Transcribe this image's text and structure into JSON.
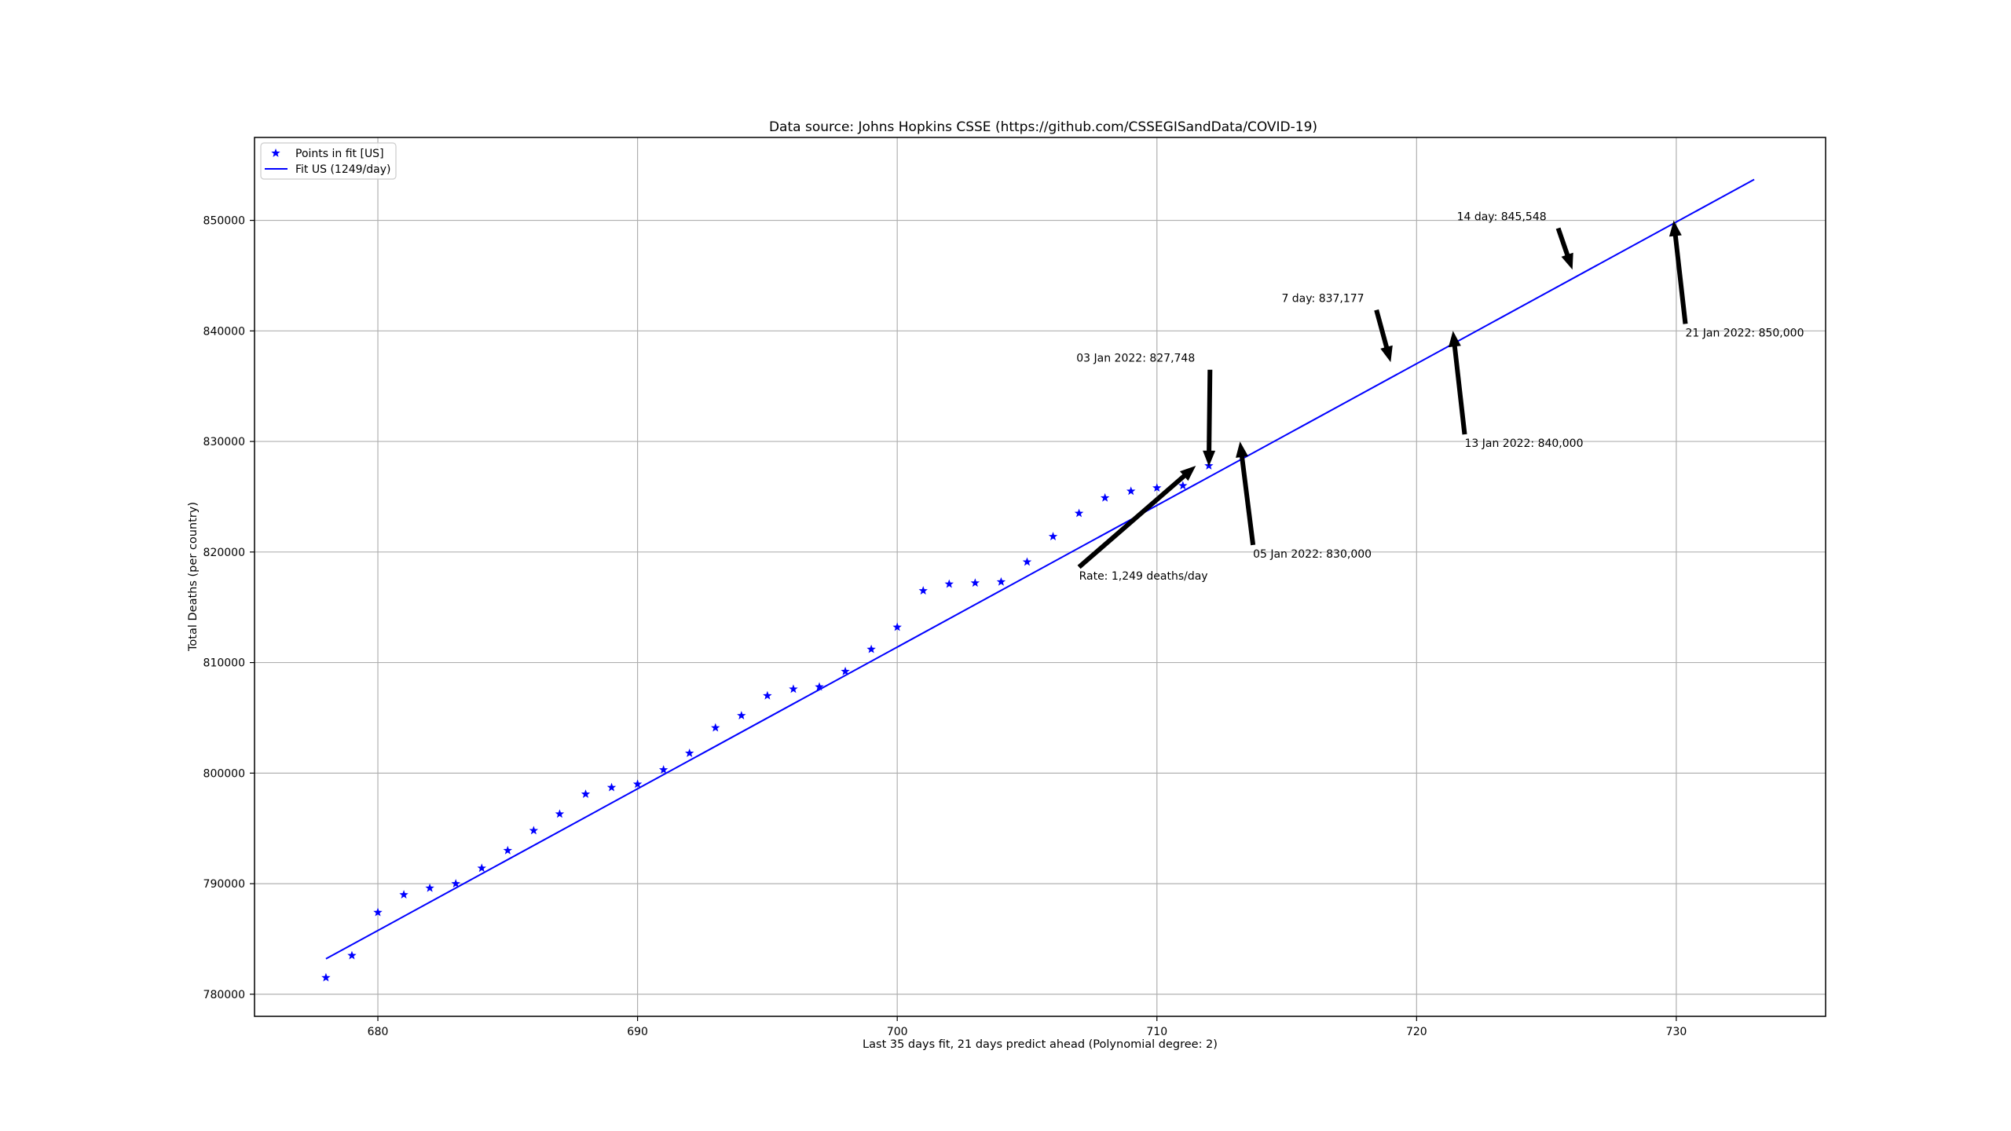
{
  "chart_data": {
    "type": "scatter",
    "title": "Data source: Johns Hopkins CSSE (https://github.com/CSSEGISandData/COVID-19)",
    "xlabel": "Last 35 days fit, 21 days predict ahead (Polynomial degree: 2)",
    "ylabel": "Total Deaths (per country)",
    "xlim": [
      675.25,
      735.75
    ],
    "ylim": [
      778000,
      857500
    ],
    "x_ticks": [
      680,
      690,
      700,
      710,
      720,
      730
    ],
    "y_ticks": [
      780000,
      790000,
      800000,
      810000,
      820000,
      830000,
      840000,
      850000
    ],
    "grid": true,
    "legend_position": "upper left",
    "series": [
      {
        "name": "Points in fit [US]",
        "kind": "scatter",
        "marker": "star",
        "color": "#0000ff",
        "x": [
          678,
          679,
          680,
          681,
          682,
          683,
          684,
          685,
          686,
          687,
          688,
          689,
          690,
          691,
          692,
          693,
          694,
          695,
          696,
          697,
          698,
          699,
          700,
          701,
          702,
          703,
          704,
          705,
          706,
          707,
          708,
          709,
          710,
          711,
          712
        ],
        "y": [
          781500,
          783500,
          787400,
          789000,
          789600,
          790000,
          791400,
          793000,
          794800,
          796300,
          798100,
          798700,
          799000,
          800300,
          801800,
          804100,
          805200,
          807000,
          807600,
          807800,
          809200,
          811200,
          813200,
          816500,
          817100,
          817200,
          817300,
          819100,
          821400,
          823500,
          824900,
          825500,
          825800,
          826000,
          827800
        ]
      },
      {
        "name": "Fit US (1249/day)",
        "kind": "line",
        "color": "#0000ff",
        "x": [
          678,
          733
        ],
        "y": [
          783200,
          853700
        ]
      }
    ],
    "annotations": [
      {
        "text": "03 Jan 2022: 827,748",
        "x": 712,
        "y": 827748,
        "text_x": 706.9,
        "text_y": 837200,
        "align": "start"
      },
      {
        "text": "05 Jan 2022: 830,000",
        "x": 713.2,
        "y": 830000,
        "text_x": 713.7,
        "text_y": 819500,
        "align": "start"
      },
      {
        "text": "Rate: 1,249 deaths/day",
        "x": 711.5,
        "y": 827800,
        "text_x": 707.0,
        "text_y": 817500,
        "align": "start"
      },
      {
        "text": "7 day: 837,177",
        "x": 719,
        "y": 837177,
        "text_x": 714.8,
        "text_y": 842600,
        "align": "start"
      },
      {
        "text": "13 Jan 2022: 840,000",
        "x": 721.4,
        "y": 840000,
        "text_x": 721.85,
        "text_y": 829500,
        "align": "start"
      },
      {
        "text": "14 day: 845,548",
        "x": 726,
        "y": 845548,
        "text_x": 721.55,
        "text_y": 850000,
        "align": "start"
      },
      {
        "text": "21 Jan 2022: 850,000",
        "x": 729.9,
        "y": 850000,
        "text_x": 730.35,
        "text_y": 839500,
        "align": "start"
      }
    ]
  }
}
